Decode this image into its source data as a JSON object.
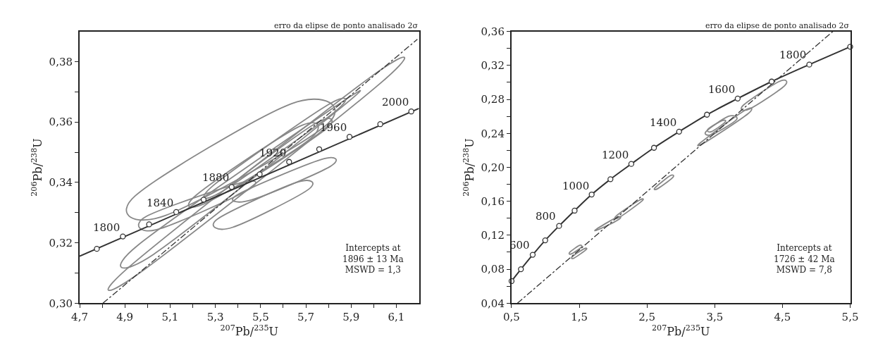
{
  "chart_data": [
    {
      "type": "line",
      "title": "erro da elipse de ponto analisado 2σ",
      "xlabel": "$^{207}$Pb/$^{235}$U",
      "ylabel": "$^{206}$Pb/$^{238}$U",
      "xlim": [
        4.7,
        6.2
      ],
      "ylim": [
        0.3,
        0.39
      ],
      "xticks": [
        {
          "value": 4.7,
          "label": "4,7"
        },
        {
          "value": 4.8,
          "label": null
        },
        {
          "value": 4.9,
          "label": "4,9"
        },
        {
          "value": 5.0,
          "label": null
        },
        {
          "value": 5.1,
          "label": "5,1"
        },
        {
          "value": 5.2,
          "label": null
        },
        {
          "value": 5.3,
          "label": "5,3"
        },
        {
          "value": 5.4,
          "label": null
        },
        {
          "value": 5.5,
          "label": "5,5"
        },
        {
          "value": 5.6,
          "label": null
        },
        {
          "value": 5.7,
          "label": "5,7"
        },
        {
          "value": 5.8,
          "label": null
        },
        {
          "value": 5.9,
          "label": "5,9"
        },
        {
          "value": 6.0,
          "label": null
        },
        {
          "value": 6.1,
          "label": "6,1"
        }
      ],
      "yticks": [
        {
          "value": 0.3,
          "label": "0,30"
        },
        {
          "value": 0.31,
          "label": null
        },
        {
          "value": 0.32,
          "label": "0,32"
        },
        {
          "value": 0.33,
          "label": null
        },
        {
          "value": 0.34,
          "label": "0,34"
        },
        {
          "value": 0.35,
          "label": null
        },
        {
          "value": 0.36,
          "label": "0,36"
        },
        {
          "value": 0.37,
          "label": null
        },
        {
          "value": 0.38,
          "label": "0,38"
        }
      ],
      "grid": false,
      "series": [
        {
          "color": "#333333",
          "marker": "none",
          "line_style": "dashdot",
          "x": [
            4.803,
            6.193
          ],
          "values": [
            0.3,
            0.3874
          ]
        },
        {
          "color": "#333333",
          "marker": "none",
          "x": [
            4.7,
            6.2
          ],
          "values": [
            0.3156,
            0.3645
          ]
        },
        {
          "type": "scatter",
          "color": "#333333",
          "marker": "circle",
          "x": [
            4.776,
            4.891,
            5.007,
            5.127,
            5.248,
            5.372,
            5.496,
            5.626,
            5.759,
            5.893,
            6.029,
            6.166
          ],
          "values": [
            0.318,
            0.3221,
            0.3261,
            0.3302,
            0.3343,
            0.3385,
            0.3427,
            0.3468,
            0.351,
            0.3551,
            0.3593,
            0.3635
          ]
        }
      ],
      "annotations": [
        {
          "text": "1800",
          "x": 4.891,
          "y": 0.3221
        },
        {
          "text": "1840",
          "x": 5.127,
          "y": 0.3302
        },
        {
          "text": "1880",
          "x": 5.372,
          "y": 0.3385
        },
        {
          "text": "1920",
          "x": 5.626,
          "y": 0.3468
        },
        {
          "text": "1960",
          "x": 5.893,
          "y": 0.3551
        },
        {
          "text": "2000",
          "x": 6.166,
          "y": 0.3635
        },
        "Intercepts at\n1896 ± 13 Ma\nMSWD = 1,3"
      ]
    },
    {
      "type": "line",
      "title": "erro da elipse de ponto analisado 2σ",
      "xlabel": "$^{207}$Pb/$^{235}$U",
      "ylabel": "$^{206}$Pb/$^{238}$U",
      "xlim": [
        0.5,
        5.5
      ],
      "ylim": [
        0.04,
        0.36
      ],
      "xticks": [
        {
          "value": 0.5,
          "label": "0,5"
        },
        {
          "value": 1.5,
          "label": "1,5"
        },
        {
          "value": 2.5,
          "label": "2,5"
        },
        {
          "value": 3.5,
          "label": "3,5"
        },
        {
          "value": 4.5,
          "label": "4,5"
        },
        {
          "value": 5.5,
          "label": "5,5"
        }
      ],
      "yticks": [
        {
          "value": 0.04,
          "label": "0,04"
        },
        {
          "value": 0.06,
          "label": null
        },
        {
          "value": 0.08,
          "label": "0,08"
        },
        {
          "value": 0.1,
          "label": null
        },
        {
          "value": 0.12,
          "label": "0,12"
        },
        {
          "value": 0.14,
          "label": null
        },
        {
          "value": 0.16,
          "label": "0,16"
        },
        {
          "value": 0.18,
          "label": null
        },
        {
          "value": 0.2,
          "label": "0,20"
        },
        {
          "value": 0.22,
          "label": null
        },
        {
          "value": 0.24,
          "label": "0,24"
        },
        {
          "value": 0.26,
          "label": null
        },
        {
          "value": 0.28,
          "label": "0,28"
        },
        {
          "value": 0.3,
          "label": null
        },
        {
          "value": 0.32,
          "label": "0,32"
        },
        {
          "value": 0.34,
          "label": null
        },
        {
          "value": 0.36,
          "label": "0,36"
        }
      ],
      "grid": false,
      "series": [
        {
          "color": "#333333",
          "marker": "none",
          "line_style": "dashdot",
          "x": [
            0.587,
            5.243
          ],
          "values": [
            0.04,
            0.36
          ]
        },
        {
          "color": "#333333",
          "marker": "circle",
          "x": [
            0.5,
            0.638,
            0.812,
            0.997,
            1.202,
            1.431,
            1.683,
            1.96,
            2.268,
            2.603,
            2.974,
            3.385,
            3.839,
            4.34,
            4.896,
            5.5
          ],
          "values": [
            0.066,
            0.08,
            0.097,
            0.114,
            0.131,
            0.149,
            0.168,
            0.186,
            0.204,
            0.223,
            0.242,
            0.262,
            0.281,
            0.301,
            0.321,
            0.342
          ]
        }
      ],
      "annotations": [
        {
          "text": "600",
          "x": 0.812,
          "y": 0.0971
        },
        {
          "text": "800",
          "x": 1.202,
          "y": 0.1314
        },
        {
          "text": "1000",
          "x": 1.683,
          "y": 0.1676
        },
        {
          "text": "1200",
          "x": 2.268,
          "y": 0.204
        },
        {
          "text": "1400",
          "x": 2.974,
          "y": 0.242
        },
        {
          "text": "1600",
          "x": 3.839,
          "y": 0.2812
        },
        {
          "text": "1800",
          "x": 4.896,
          "y": 0.3214
        },
        "Intercepts at\n1726 ± 42 Ma\nMSWD = 7,8"
      ]
    }
  ]
}
